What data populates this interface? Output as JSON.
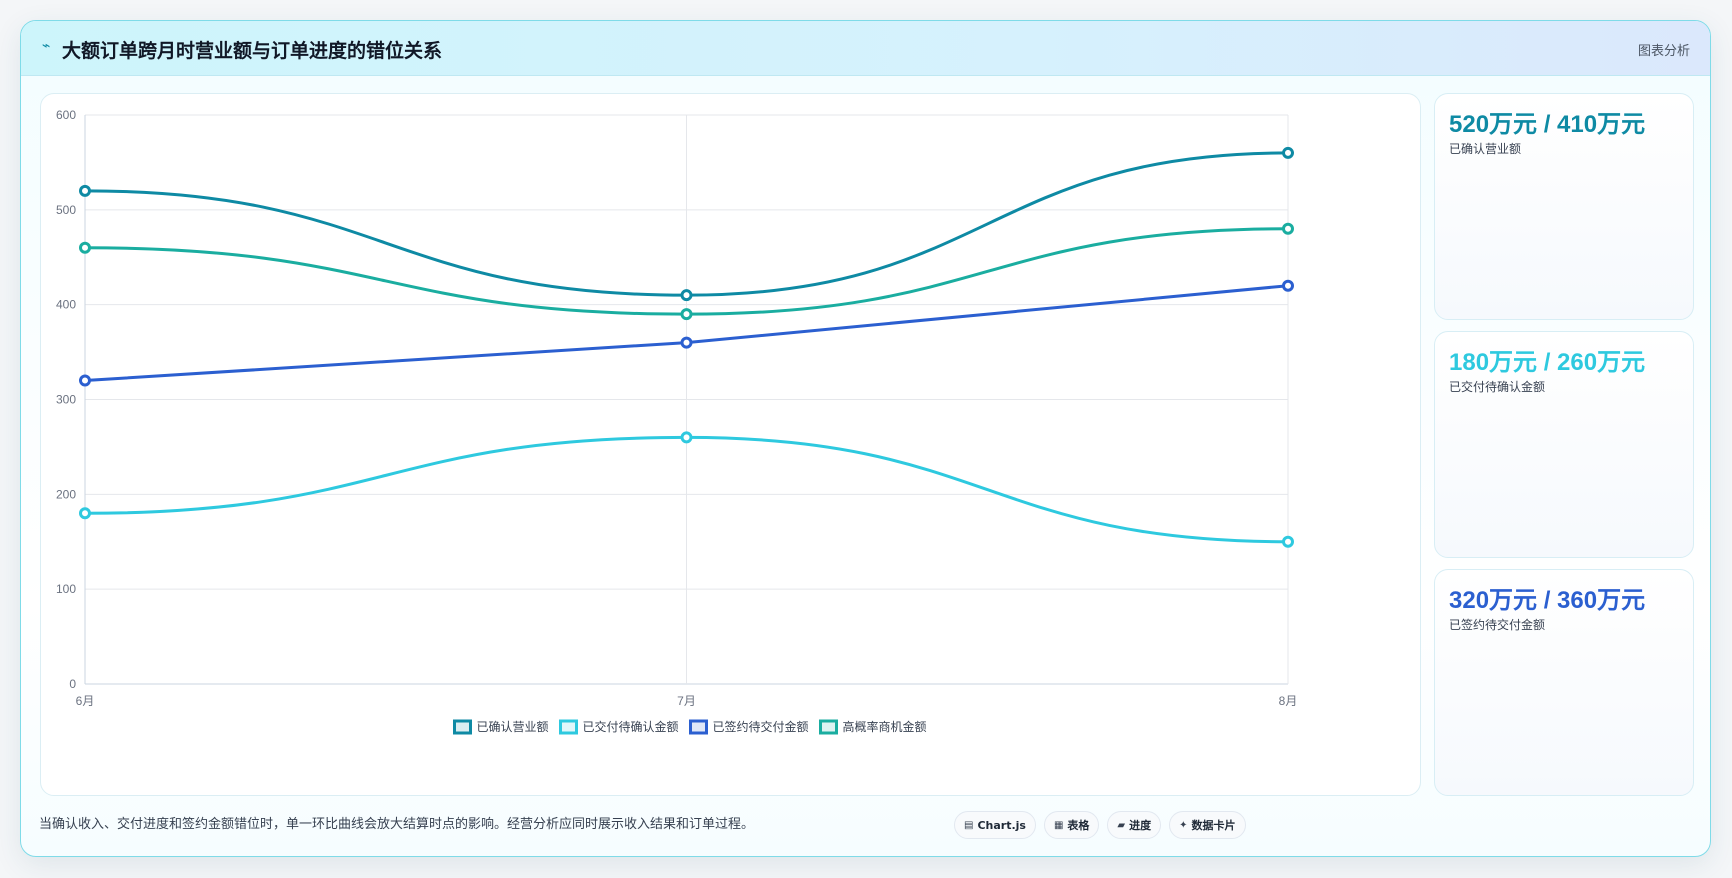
{
  "header": {
    "icon": "chart-line-icon",
    "title": "大额订单跨月时营业额与订单进度的错位关系",
    "tag": "图表分析"
  },
  "chart_data": {
    "type": "line",
    "categories": [
      "6月",
      "7月",
      "8月"
    ],
    "ylim": [
      0,
      600
    ],
    "yticks": [
      0,
      100,
      200,
      300,
      400,
      500,
      600
    ],
    "grid": true,
    "legend_position": "bottom",
    "series": [
      {
        "name": "已确认营业额",
        "values": [
          520,
          410,
          560
        ],
        "color": "#0e8aa4",
        "curved": true
      },
      {
        "name": "已交付待确认金额",
        "values": [
          180,
          260,
          150
        ],
        "color": "#2ec9df",
        "curved": true
      },
      {
        "name": "已签约待交付金额",
        "values": [
          320,
          360,
          420
        ],
        "color": "#2b5fd0",
        "curved": false
      },
      {
        "name": "高概率商机金额",
        "values": [
          460,
          390,
          480
        ],
        "color": "#1aada0",
        "curved": true
      }
    ]
  },
  "stats": [
    {
      "value": "520万元 / 410万元",
      "label": "已确认营业额",
      "color": "#0e8aa4"
    },
    {
      "value": "180万元 / 260万元",
      "label": "已交付待确认金额",
      "color": "#2ec9df"
    },
    {
      "value": "320万元 / 360万元",
      "label": "已签约待交付金额",
      "color": "#2b5fd0"
    }
  ],
  "footer": {
    "note": "当确认收入、交付进度和签约金额错位时，单一环比曲线会放大结算时点的影响。经营分析应同时展示收入结果和订单过程。",
    "pills": [
      {
        "icon": "chart-icon",
        "glyph": "▤",
        "label": "Chart.js"
      },
      {
        "icon": "table-icon",
        "glyph": "▦",
        "label": "表格"
      },
      {
        "icon": "progress-icon",
        "glyph": "▰",
        "label": "进度"
      },
      {
        "icon": "card-icon",
        "glyph": "✦",
        "label": "数据卡片"
      }
    ]
  }
}
